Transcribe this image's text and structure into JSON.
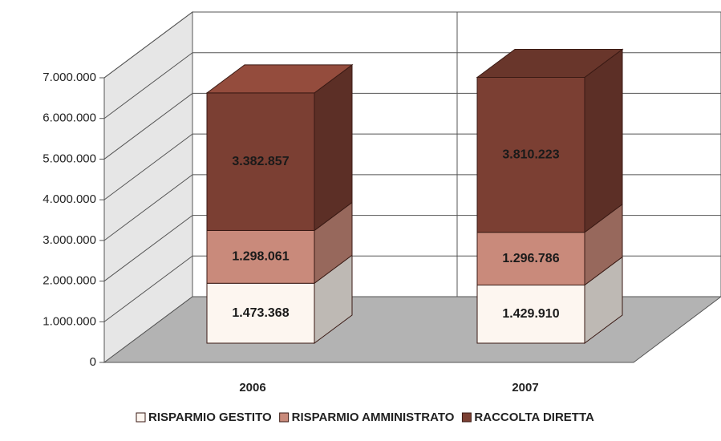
{
  "chart_data": {
    "type": "bar3d_stacked",
    "categories": [
      "2006",
      "2007"
    ],
    "series": [
      {
        "name": "RISPARMIO GESTITO",
        "color": "#fdf6f0",
        "values": [
          1473368,
          1429910
        ],
        "value_labels": [
          "1.473.368",
          "1.429.910"
        ]
      },
      {
        "name": "RISPARMIO AMMINISTRATO",
        "color": "#c98a7b",
        "values": [
          1298061,
          1296786
        ],
        "value_labels": [
          "1.298.061",
          "1.296.786"
        ]
      },
      {
        "name": "RACCOLTA DIRETTA",
        "color": "#7b3f33",
        "values": [
          3382857,
          3810223
        ],
        "value_labels": [
          "3.382.857",
          "3.810.223"
        ]
      }
    ],
    "ylim": [
      0,
      7000000
    ],
    "yticks": [
      {
        "value": 0,
        "label": "0"
      },
      {
        "value": 1000000,
        "label": "1.000.000"
      },
      {
        "value": 2000000,
        "label": "2.000.000"
      },
      {
        "value": 3000000,
        "label": "3.000.000"
      },
      {
        "value": 4000000,
        "label": "4.000.000"
      },
      {
        "value": 5000000,
        "label": "5.000.000"
      },
      {
        "value": 6000000,
        "label": "6.000.000"
      },
      {
        "value": 7000000,
        "label": "7.000.000"
      }
    ],
    "grid": true,
    "legend": "bottom"
  }
}
